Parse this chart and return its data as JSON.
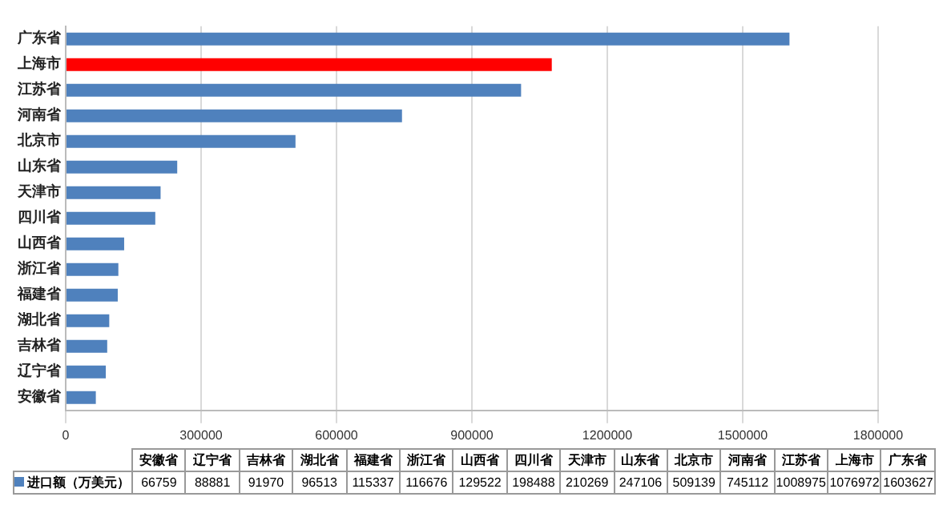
{
  "chart_data": {
    "type": "bar",
    "orientation": "horizontal",
    "categories": [
      "广东省",
      "上海市",
      "江苏省",
      "河南省",
      "北京市",
      "山东省",
      "天津市",
      "四川省",
      "山西省",
      "浙江省",
      "福建省",
      "湖北省",
      "吉林省",
      "辽宁省",
      "安徽省"
    ],
    "series": [
      {
        "name": "进口额（万美元）",
        "color": "#4f81bd",
        "colors": [
          "#4f81bd",
          "#ff0000",
          "#4f81bd",
          "#4f81bd",
          "#4f81bd",
          "#4f81bd",
          "#4f81bd",
          "#4f81bd",
          "#4f81bd",
          "#4f81bd",
          "#4f81bd",
          "#4f81bd",
          "#4f81bd",
          "#4f81bd",
          "#4f81bd"
        ],
        "values": [
          1603627,
          1076972,
          1008975,
          745112,
          509139,
          247106,
          210269,
          198488,
          129522,
          116676,
          115337,
          96513,
          91970,
          88881,
          66759
        ]
      }
    ],
    "xlim": [
      0,
      1800000
    ],
    "xticks": [
      0,
      300000,
      600000,
      900000,
      1200000,
      1500000,
      1800000
    ],
    "grid": "x",
    "legend": "bottom",
    "annotations": [
      "66759",
      "88881",
      "91970",
      "96513",
      "115337",
      "116676",
      "129522",
      "198488",
      "210269",
      "247106",
      "509139",
      "745112",
      "1008975",
      "1076972",
      "1603627"
    ]
  }
}
